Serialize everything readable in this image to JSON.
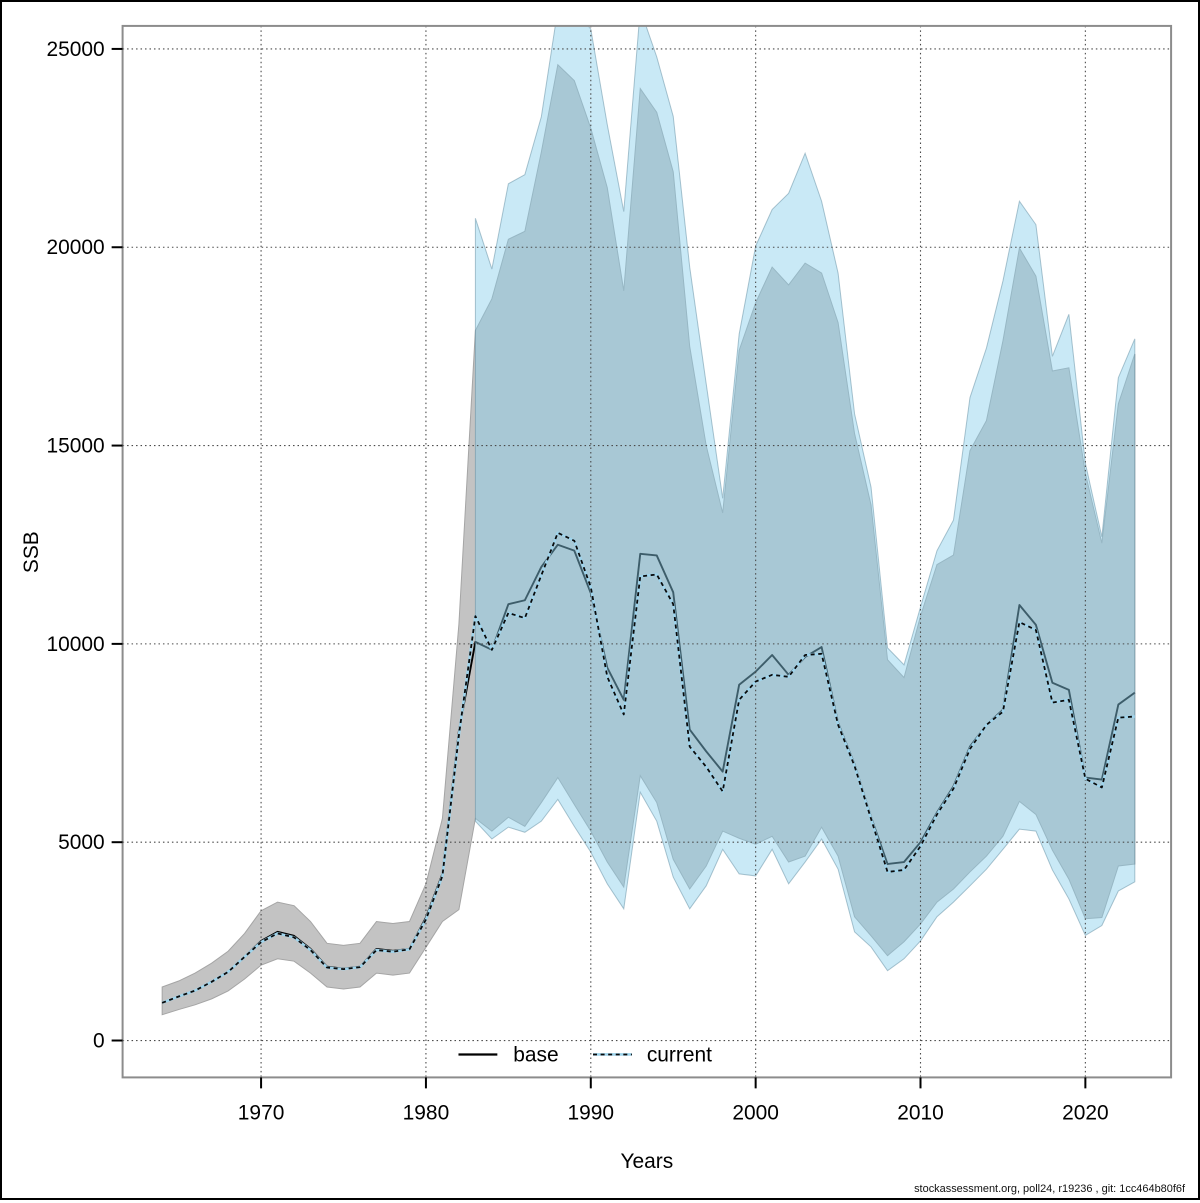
{
  "figure": {
    "ylabel": "SSB",
    "xlabel": "Years",
    "legend": {
      "base_label": "base",
      "current_label": "current"
    },
    "footer": "stockassessment.org, poll24, r19236 , git: 1cc464b80f6f",
    "colors": {
      "base_band": "#c3c3c3",
      "base_band_edge": "#a5a5a5",
      "current_band": "rgba(135,206,235,0.45)",
      "current_band_edge": "rgba(95,140,160,0.5)",
      "base_line": "#000000",
      "current_line_under": "#9fd4ec",
      "current_line_dash": "#0a0a0a",
      "grid": "#4a4a4a",
      "frame": "#8c8c8c"
    }
  },
  "chart_data": {
    "type": "area",
    "title": "",
    "xlabel": "Years",
    "ylabel": "SSB",
    "legend_position": "bottom-center-inside",
    "grid": "dotted",
    "xlim": [
      1961.6,
      2025.2
    ],
    "ylim": [
      -930,
      25580
    ],
    "x_ticks": [
      1970,
      1980,
      1990,
      2000,
      2010,
      2020
    ],
    "y_ticks": [
      0,
      5000,
      10000,
      15000,
      20000,
      25000
    ],
    "years": [
      1964,
      1965,
      1966,
      1967,
      1968,
      1969,
      1970,
      1971,
      1972,
      1973,
      1974,
      1975,
      1976,
      1977,
      1978,
      1979,
      1980,
      1981,
      1982,
      1983,
      1984,
      1985,
      1986,
      1987,
      1988,
      1989,
      1990,
      1991,
      1992,
      1993,
      1994,
      1995,
      1996,
      1997,
      1998,
      1999,
      2000,
      2001,
      2002,
      2003,
      2004,
      2005,
      2006,
      2007,
      2008,
      2009,
      2010,
      2011,
      2012,
      2013,
      2014,
      2015,
      2016,
      2017,
      2018,
      2019,
      2020,
      2021,
      2022,
      2023
    ],
    "series": [
      {
        "name": "base",
        "style": "solid-black",
        "mean": [
          950,
          1110,
          1260,
          1480,
          1730,
          2110,
          2510,
          2740,
          2640,
          2310,
          1860,
          1810,
          1860,
          2310,
          2260,
          2310,
          3100,
          4200,
          7800,
          10050,
          9850,
          11000,
          11100,
          11940,
          12500,
          12350,
          11280,
          9400,
          8590,
          12270,
          12230,
          11300,
          7840,
          7290,
          6780,
          8970,
          9300,
          9720,
          9220,
          9670,
          9920,
          8010,
          6960,
          5630,
          4450,
          4500,
          5000,
          5750,
          6410,
          7410,
          7960,
          8340,
          10980,
          10480,
          9020,
          8840,
          6630,
          6580,
          8470,
          8770
        ],
        "band_lo": [
          650,
          780,
          900,
          1050,
          1250,
          1550,
          1900,
          2060,
          2000,
          1700,
          1350,
          1300,
          1350,
          1700,
          1650,
          1700,
          2350,
          3000,
          3300,
          5600,
          5280,
          5630,
          5400,
          6000,
          6630,
          5950,
          5280,
          4500,
          3870,
          6680,
          6000,
          4570,
          3820,
          4400,
          5280,
          5100,
          4950,
          5150,
          4500,
          4650,
          5380,
          4650,
          3120,
          2640,
          2140,
          2490,
          2940,
          3490,
          3820,
          4250,
          4650,
          5150,
          6030,
          5700,
          4800,
          4070,
          3070,
          3100,
          4400,
          4450
        ],
        "band_hi": [
          1350,
          1500,
          1700,
          1950,
          2250,
          2700,
          3270,
          3490,
          3400,
          3000,
          2450,
          2400,
          2450,
          3000,
          2950,
          3000,
          3950,
          5600,
          10500,
          17900,
          18700,
          20200,
          20400,
          22400,
          24600,
          24200,
          23000,
          21500,
          18900,
          24000,
          23400,
          21900,
          17500,
          15000,
          13300,
          17400,
          18600,
          19500,
          19050,
          19600,
          19350,
          18100,
          15300,
          13500,
          9600,
          9150,
          10700,
          12000,
          12240,
          14870,
          15630,
          17640,
          19980,
          19270,
          16880,
          16960,
          14300,
          12540,
          16050,
          17310
        ]
      },
      {
        "name": "current",
        "style": "dotted-blue",
        "mean": [
          950,
          1110,
          1260,
          1480,
          1730,
          2110,
          2480,
          2700,
          2600,
          2280,
          1840,
          1800,
          1850,
          2280,
          2240,
          2300,
          3050,
          4150,
          7700,
          10700,
          9850,
          10780,
          10650,
          11730,
          12800,
          12600,
          11430,
          9170,
          8220,
          11700,
          11750,
          11000,
          7410,
          6900,
          6280,
          8590,
          9050,
          9220,
          9170,
          9720,
          9750,
          7960,
          6920,
          5590,
          4250,
          4300,
          4900,
          5700,
          6350,
          7350,
          7960,
          8290,
          10550,
          10350,
          8520,
          8590,
          6600,
          6380,
          8140,
          8170
        ],
        "band_start_year": 1983,
        "band_lo": [
          5530,
          5080,
          5380,
          5250,
          5530,
          6080,
          5400,
          4750,
          3950,
          3320,
          6260,
          5530,
          4120,
          3320,
          3900,
          4820,
          4200,
          4150,
          4820,
          3950,
          4500,
          5080,
          4320,
          2740,
          2360,
          1760,
          2060,
          2510,
          3120,
          3490,
          3900,
          4320,
          4820,
          5330,
          5280,
          4300,
          3570,
          2650,
          2900,
          3770,
          4000
        ],
        "band_hi": [
          20730,
          19450,
          21600,
          21830,
          23290,
          26000,
          26000,
          25500,
          23090,
          20900,
          26000,
          24800,
          23300,
          19500,
          16560,
          13670,
          17810,
          20030,
          20950,
          21360,
          22370,
          21160,
          19350,
          15800,
          13950,
          9900,
          9470,
          10930,
          12350,
          13120,
          16210,
          17460,
          19150,
          21160,
          20570,
          17250,
          18310,
          14550,
          12700,
          16710,
          17690
        ]
      }
    ]
  }
}
